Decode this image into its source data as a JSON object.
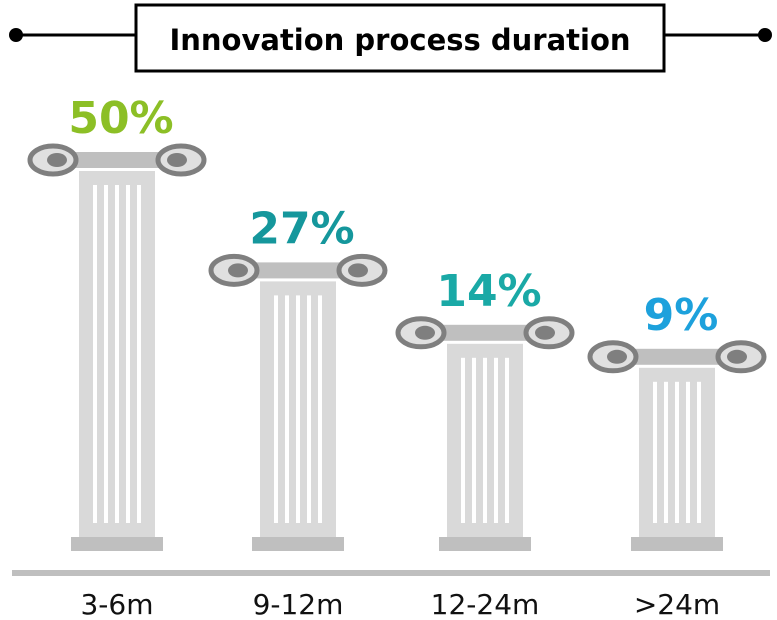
{
  "chart_data": {
    "type": "pillar",
    "title": "Innovation process duration",
    "categories": [
      "3-6m",
      "9-12m",
      "12-24m",
      ">24m"
    ],
    "values": [
      50,
      27,
      14,
      9
    ],
    "value_labels": [
      "50%",
      "27%",
      "14%",
      "9%"
    ],
    "colors": [
      "#8cbf26",
      "#15979c",
      "#1aa9a6",
      "#1da1dc"
    ]
  }
}
